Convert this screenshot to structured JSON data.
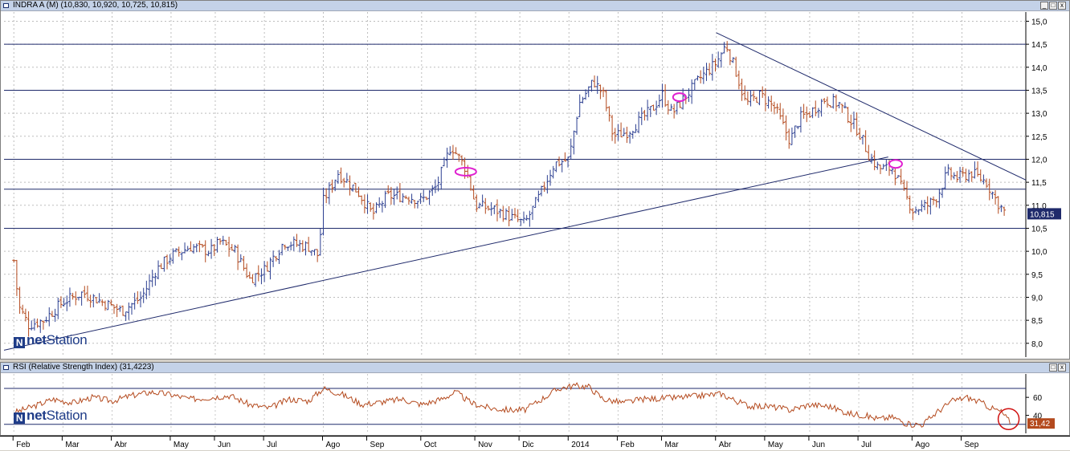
{
  "main_title": "INDRA A (M) (10,830, 10,920, 10,725, 10,815)",
  "rsi_title": "RSI (Relative Strength Index) (31,4223)",
  "window_buttons": {
    "minimize": "_",
    "restore": "□",
    "close": "x"
  },
  "logo": {
    "brand_a": "net",
    "brand_b": "Station"
  },
  "colors": {
    "up": "#2c3f91",
    "down": "#b44a1e",
    "rsi": "#b44a1e",
    "line": "#1f2a6b",
    "ellipse": "#e020d0",
    "price_tag": "#1f2a6b",
    "rsi_tag": "#b44a1e"
  },
  "chart_data": [
    {
      "type": "ohlc",
      "title": "INDRA A (M) (10,830, 10,920, 10,725, 10,815)",
      "y_ticks": [
        "8,0",
        "8,5",
        "9,0",
        "9,5",
        "10,0",
        "10,5",
        "11,0",
        "11,5",
        "12,0",
        "12,5",
        "13,0",
        "13,5",
        "14,0",
        "14,5",
        "15,0"
      ],
      "ylim": [
        7.7,
        15.2
      ],
      "last_value": 10.815,
      "last_value_label": "10,815",
      "x_ticks": [
        {
          "label": "Feb",
          "x": 0.0
        },
        {
          "label": "Mar",
          "x": 1.0
        },
        {
          "label": "Abr",
          "x": 2.0
        },
        {
          "label": "May",
          "x": 3.2
        },
        {
          "label": "Jun",
          "x": 4.1
        },
        {
          "label": "Jul",
          "x": 5.1
        },
        {
          "label": "Ago",
          "x": 6.3
        },
        {
          "label": "Sep",
          "x": 7.2
        },
        {
          "label": "Oct",
          "x": 8.3
        },
        {
          "label": "Nov",
          "x": 9.4
        },
        {
          "label": "Dic",
          "x": 10.3
        },
        {
          "label": "2014",
          "x": 11.3
        },
        {
          "label": "Feb",
          "x": 12.3
        },
        {
          "label": "Mar",
          "x": 13.2
        },
        {
          "label": "Abr",
          "x": 14.3
        },
        {
          "label": "May",
          "x": 15.3
        },
        {
          "label": "Jun",
          "x": 16.2
        },
        {
          "label": "Jul",
          "x": 17.2
        },
        {
          "label": "Ago",
          "x": 18.3
        },
        {
          "label": "Sep",
          "x": 19.3
        }
      ],
      "xlim": [
        -0.2,
        20.6
      ],
      "price_path": [
        [
          0.0,
          9.8
        ],
        [
          0.1,
          8.8
        ],
        [
          0.3,
          8.4
        ],
        [
          0.6,
          8.5
        ],
        [
          1.0,
          8.9
        ],
        [
          1.4,
          9.1
        ],
        [
          1.8,
          8.9
        ],
        [
          2.2,
          8.7
        ],
        [
          2.6,
          9.0
        ],
        [
          2.9,
          9.6
        ],
        [
          3.2,
          9.9
        ],
        [
          3.6,
          10.1
        ],
        [
          4.0,
          10.0
        ],
        [
          4.2,
          10.2
        ],
        [
          4.5,
          10.0
        ],
        [
          4.8,
          9.4
        ],
        [
          5.1,
          9.6
        ],
        [
          5.5,
          10.2
        ],
        [
          6.0,
          10.1
        ],
        [
          6.2,
          9.9
        ],
        [
          6.3,
          11.1
        ],
        [
          6.6,
          11.7
        ],
        [
          7.0,
          11.3
        ],
        [
          7.3,
          10.8
        ],
        [
          7.6,
          11.2
        ],
        [
          8.0,
          11.2
        ],
        [
          8.3,
          11.1
        ],
        [
          8.6,
          11.4
        ],
        [
          8.9,
          12.3
        ],
        [
          9.2,
          11.8
        ],
        [
          9.4,
          11.0
        ],
        [
          9.8,
          10.9
        ],
        [
          10.2,
          10.7
        ],
        [
          10.4,
          10.6
        ],
        [
          10.7,
          11.2
        ],
        [
          11.0,
          11.9
        ],
        [
          11.3,
          12.0
        ],
        [
          11.5,
          13.2
        ],
        [
          11.8,
          13.7
        ],
        [
          12.0,
          13.4
        ],
        [
          12.2,
          12.5
        ],
        [
          12.5,
          12.6
        ],
        [
          12.8,
          12.9
        ],
        [
          13.0,
          13.1
        ],
        [
          13.2,
          13.4
        ],
        [
          13.4,
          13.0
        ],
        [
          13.7,
          13.4
        ],
        [
          14.0,
          13.8
        ],
        [
          14.3,
          14.1
        ],
        [
          14.5,
          14.5
        ],
        [
          14.7,
          13.9
        ],
        [
          14.9,
          13.2
        ],
        [
          15.2,
          13.4
        ],
        [
          15.5,
          13.1
        ],
        [
          15.8,
          12.4
        ],
        [
          16.0,
          12.9
        ],
        [
          16.2,
          13.0
        ],
        [
          16.5,
          13.3
        ],
        [
          16.8,
          13.2
        ],
        [
          17.0,
          12.9
        ],
        [
          17.2,
          12.6
        ],
        [
          17.4,
          12.1
        ],
        [
          17.6,
          11.8
        ],
        [
          17.9,
          11.8
        ],
        [
          18.1,
          11.3
        ],
        [
          18.3,
          10.9
        ],
        [
          18.6,
          11.0
        ],
        [
          18.8,
          11.2
        ],
        [
          19.0,
          11.7
        ],
        [
          19.2,
          11.6
        ],
        [
          19.5,
          11.7
        ],
        [
          19.8,
          11.5
        ],
        [
          20.0,
          11.1
        ],
        [
          20.2,
          10.8
        ]
      ],
      "trendlines": [
        {
          "name": "rising-support",
          "from": [
            -0.2,
            7.85
          ],
          "to": [
            17.8,
            12.05
          ]
        },
        {
          "name": "falling-resistance",
          "from": [
            14.3,
            14.75
          ],
          "to": [
            20.6,
            11.55
          ]
        }
      ],
      "horizontal_lines": [
        14.5,
        13.5,
        12.0,
        11.35,
        10.5
      ],
      "ellipses": [
        [
          9.2,
          11.73
        ],
        [
          13.55,
          13.35
        ],
        [
          17.95,
          11.9
        ]
      ]
    },
    {
      "type": "line",
      "title": "RSI (Relative Strength Index) (31,4223)",
      "series_label": "31,42",
      "last_value": 31.42,
      "y_ticks": [
        "40",
        "60"
      ],
      "ylim": [
        20,
        86
      ],
      "levels": [
        70,
        30
      ],
      "xlim": [
        -0.2,
        20.6
      ],
      "path": [
        [
          0.0,
          43
        ],
        [
          0.4,
          50
        ],
        [
          0.8,
          58
        ],
        [
          1.2,
          54
        ],
        [
          1.6,
          60
        ],
        [
          2.0,
          56
        ],
        [
          2.4,
          62
        ],
        [
          2.8,
          66
        ],
        [
          3.2,
          63
        ],
        [
          3.6,
          58
        ],
        [
          4.0,
          60
        ],
        [
          4.4,
          62
        ],
        [
          4.8,
          52
        ],
        [
          5.2,
          48
        ],
        [
          5.6,
          58
        ],
        [
          6.0,
          56
        ],
        [
          6.3,
          70
        ],
        [
          6.7,
          63
        ],
        [
          7.1,
          52
        ],
        [
          7.5,
          55
        ],
        [
          7.9,
          58
        ],
        [
          8.3,
          52
        ],
        [
          8.7,
          58
        ],
        [
          9.0,
          66
        ],
        [
          9.3,
          54
        ],
        [
          9.7,
          48
        ],
        [
          10.1,
          46
        ],
        [
          10.4,
          46
        ],
        [
          10.8,
          60
        ],
        [
          11.1,
          70
        ],
        [
          11.4,
          73
        ],
        [
          11.7,
          72
        ],
        [
          12.0,
          58
        ],
        [
          12.4,
          54
        ],
        [
          12.8,
          58
        ],
        [
          13.2,
          59
        ],
        [
          13.6,
          60
        ],
        [
          14.0,
          62
        ],
        [
          14.4,
          64
        ],
        [
          14.7,
          56
        ],
        [
          15.0,
          50
        ],
        [
          15.4,
          50
        ],
        [
          15.8,
          46
        ],
        [
          16.2,
          52
        ],
        [
          16.6,
          50
        ],
        [
          17.0,
          42
        ],
        [
          17.3,
          40
        ],
        [
          17.6,
          36
        ],
        [
          17.9,
          38
        ],
        [
          18.2,
          30
        ],
        [
          18.5,
          30
        ],
        [
          18.8,
          44
        ],
        [
          19.1,
          56
        ],
        [
          19.4,
          60
        ],
        [
          19.7,
          54
        ],
        [
          19.9,
          48
        ],
        [
          20.1,
          44
        ],
        [
          20.3,
          31.4
        ]
      ],
      "highlight_circle": [
        20.25,
        31.4
      ]
    }
  ]
}
